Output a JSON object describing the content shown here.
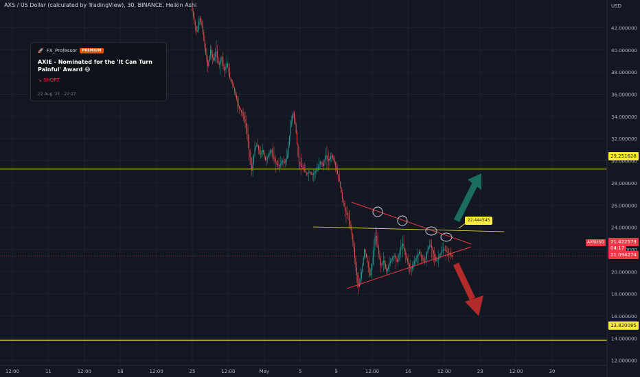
{
  "header": {
    "title": "AXS / US Dollar (calculated by TradingView), 30, BINANCE, Heikin Ashi"
  },
  "idea_card": {
    "author": "FX_Professor",
    "badge": "PREMIUM",
    "title": "AXIE - Nominated for the 'It Can Turn Painful' Award 😆",
    "direction": "↘ SHORT",
    "date": "22 Aug '21 - 22:27"
  },
  "price_labels": {
    "resistance": "29.251628",
    "current": "21.422573",
    "countdown": "04:17",
    "low": "21.094274",
    "support": "13.820085",
    "symbol": "AXSUSD",
    "callout": "22.444545"
  },
  "colors": {
    "background": "#131722",
    "up": "#26a69a",
    "down": "#ef5350",
    "level": "#ffeb3b",
    "arrow_up": "#1b6e5f",
    "arrow_down": "#b22a2a"
  },
  "chart_data": {
    "type": "candlestick",
    "title": "AXS / US Dollar (calculated by TradingView), 30, BINANCE, Heikin Ashi",
    "y_axis_label": "USD",
    "ylim": [
      10.5,
      44.5
    ],
    "y_ticks": [
      "42.000000",
      "40.000000",
      "38.000000",
      "36.000000",
      "34.000000",
      "32.000000",
      "30.000000",
      "28.000000",
      "26.000000",
      "24.000000",
      "22.000000",
      "20.000000",
      "18.000000",
      "16.000000",
      "14.000000",
      "12.000000"
    ],
    "x_ticks": [
      "12:00",
      "11",
      "12:00",
      "18",
      "12:00",
      "25",
      "12:00",
      "May",
      "5",
      "9",
      "12:00",
      "16",
      "12:00",
      "23",
      "12:00",
      "30"
    ],
    "horizontal_levels": [
      29.251628,
      13.820085
    ],
    "current_price": 21.422573,
    "grid": true,
    "price_path": [
      [
        280,
        44
      ],
      [
        284,
        42.6
      ],
      [
        288,
        41.5
      ],
      [
        292,
        43
      ],
      [
        296,
        42
      ],
      [
        300,
        40
      ],
      [
        304,
        38.5
      ],
      [
        308,
        40
      ],
      [
        312,
        39
      ],
      [
        316,
        40
      ],
      [
        320,
        38.5
      ],
      [
        324,
        39.5
      ],
      [
        328,
        38
      ],
      [
        332,
        38.8
      ],
      [
        336,
        37.5
      ],
      [
        340,
        37
      ],
      [
        344,
        36
      ],
      [
        348,
        35
      ],
      [
        352,
        34.5
      ],
      [
        356,
        34
      ],
      [
        360,
        33
      ],
      [
        364,
        31
      ],
      [
        368,
        29
      ],
      [
        372,
        31
      ],
      [
        376,
        31.5
      ],
      [
        380,
        30.5
      ],
      [
        384,
        31
      ],
      [
        388,
        30
      ],
      [
        392,
        30.5
      ],
      [
        396,
        31
      ],
      [
        400,
        30.2
      ],
      [
        404,
        29.7
      ],
      [
        408,
        29.5
      ],
      [
        412,
        30
      ],
      [
        416,
        29.8
      ],
      [
        420,
        30.5
      ],
      [
        424,
        33
      ],
      [
        428,
        34.5
      ],
      [
        432,
        33
      ],
      [
        436,
        30
      ],
      [
        440,
        29.5
      ],
      [
        444,
        29.2
      ],
      [
        448,
        28.8
      ],
      [
        452,
        29
      ],
      [
        456,
        28.7
      ],
      [
        460,
        29
      ],
      [
        464,
        29.2
      ],
      [
        468,
        30
      ],
      [
        472,
        29.5
      ],
      [
        476,
        30.5
      ],
      [
        480,
        30
      ],
      [
        484,
        30.5
      ],
      [
        488,
        30
      ],
      [
        492,
        29
      ],
      [
        496,
        28
      ],
      [
        500,
        26.5
      ],
      [
        504,
        25.5
      ],
      [
        508,
        25
      ],
      [
        512,
        24
      ],
      [
        516,
        22.5
      ],
      [
        520,
        20
      ],
      [
        524,
        18.5
      ],
      [
        528,
        20
      ],
      [
        532,
        22
      ],
      [
        536,
        21
      ],
      [
        540,
        19.5
      ],
      [
        544,
        21
      ],
      [
        548,
        23.5
      ],
      [
        552,
        22
      ],
      [
        556,
        20.5
      ],
      [
        560,
        21
      ],
      [
        564,
        20
      ],
      [
        568,
        20.7
      ],
      [
        572,
        21.2
      ],
      [
        576,
        21.5
      ],
      [
        580,
        20.8
      ],
      [
        584,
        22
      ],
      [
        588,
        22.5
      ],
      [
        592,
        21.5
      ],
      [
        596,
        20.7
      ],
      [
        600,
        20.2
      ],
      [
        604,
        20.8
      ],
      [
        608,
        21.3
      ],
      [
        612,
        21.8
      ],
      [
        616,
        21.2
      ],
      [
        620,
        20.8
      ],
      [
        624,
        22
      ],
      [
        628,
        22.5
      ],
      [
        632,
        21.8
      ],
      [
        636,
        20.9
      ],
      [
        640,
        21.3
      ],
      [
        644,
        21.8
      ],
      [
        648,
        22
      ],
      [
        652,
        21.8
      ],
      [
        656,
        21.6
      ],
      [
        660,
        21.4
      ]
    ],
    "drawings": [
      {
        "type": "trendline",
        "from": [
          "2021-05-10",
          25.0
        ],
        "to": [
          "2021-05-20",
          21.4
        ]
      },
      {
        "type": "trendline",
        "from": [
          "2021-05-10",
          17.2
        ],
        "to": [
          "2021-05-20",
          21.3
        ]
      },
      {
        "type": "horizontal_ray",
        "price": 22.444545
      },
      {
        "type": "arrow",
        "direction": "up",
        "color": "#1b6e5f"
      },
      {
        "type": "arrow",
        "direction": "down",
        "color": "#b22a2a"
      }
    ]
  }
}
